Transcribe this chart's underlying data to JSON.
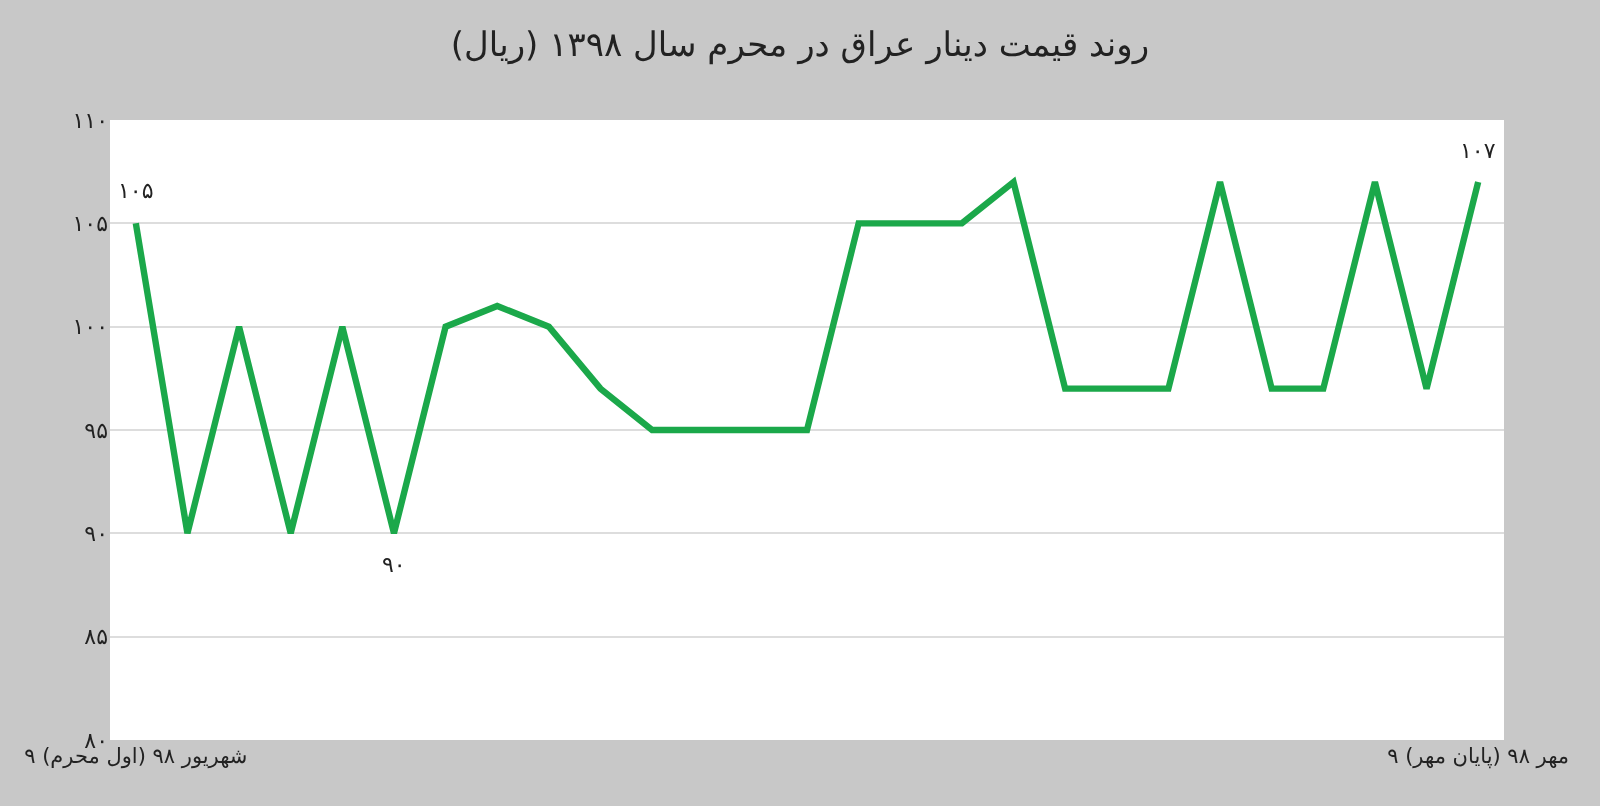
{
  "chart_data": {
    "type": "line",
    "title": "روند قیمت دینار عراق در محرم سال ۱۳۹۸ (ریال)",
    "categories": [
      "۹ شهریور ۹۸ (اول محرم)",
      null,
      null,
      null,
      null,
      null,
      null,
      null,
      null,
      null,
      null,
      null,
      null,
      null,
      null,
      null,
      null,
      null,
      null,
      null,
      null,
      null,
      null,
      null,
      null,
      null,
      "۹ مهر ۹۸ (پایان مهر)"
    ],
    "series": [
      {
        "color": "#1ba84a",
        "values": [
          105,
          90,
          100,
          90,
          100,
          90,
          100,
          101,
          100,
          97,
          95,
          95,
          95,
          95,
          105,
          105,
          105,
          107,
          97,
          97,
          97,
          107,
          97,
          97,
          107,
          97,
          107
        ],
        "value_labels": [
          "۱۰۵",
          null,
          null,
          null,
          null,
          "۹۰",
          null,
          null,
          null,
          null,
          null,
          null,
          null,
          null,
          null,
          null,
          null,
          null,
          null,
          null,
          null,
          null,
          null,
          null,
          null,
          null,
          "۱۰۷"
        ]
      }
    ],
    "ylim": [
      80,
      110
    ],
    "yticks": [
      {
        "value": 80,
        "label": "۸۰"
      },
      {
        "value": 85,
        "label": "۸۵"
      },
      {
        "value": 90,
        "label": "۹۰"
      },
      {
        "value": 95,
        "label": "۹۵"
      },
      {
        "value": 100,
        "label": "۱۰۰"
      },
      {
        "value": 105,
        "label": "۱۰۵"
      },
      {
        "value": 110,
        "label": "۱۱۰"
      }
    ],
    "grid": "y",
    "marker": "none",
    "line_style": "solid"
  }
}
